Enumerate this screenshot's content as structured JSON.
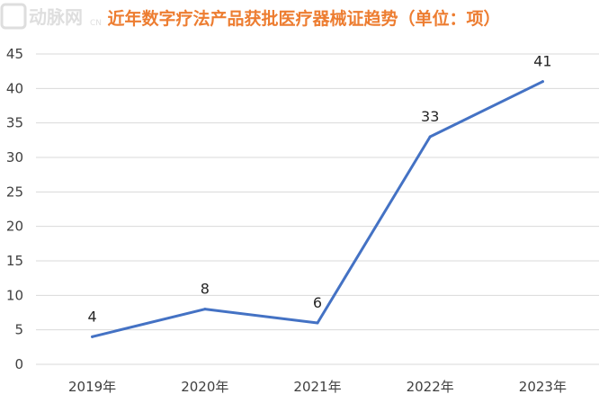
{
  "chart_data": {
    "type": "line",
    "title": "近年数字疗法产品获批医疗器械证趋势（单位：项）",
    "categories": [
      "2019年",
      "2020年",
      "2021年",
      "2022年",
      "2023年"
    ],
    "series": [
      {
        "values": [
          4,
          8,
          6,
          33,
          41
        ]
      }
    ],
    "data_labels": [
      "4",
      "8",
      "6",
      "33",
      "41"
    ],
    "ylim": [
      0,
      45
    ],
    "yticks": [
      0,
      5,
      10,
      15,
      20,
      25,
      30,
      35,
      40,
      45
    ],
    "ytick_labels": [
      "0",
      "5",
      "10",
      "15",
      "20",
      "25",
      "30",
      "35",
      "40",
      "45"
    ],
    "grid": true,
    "legend": "none",
    "colors": {
      "series": "#4472c4",
      "title": "#ed7d31"
    }
  },
  "watermark": {
    "text": "动脉网",
    "sub": "CN"
  }
}
